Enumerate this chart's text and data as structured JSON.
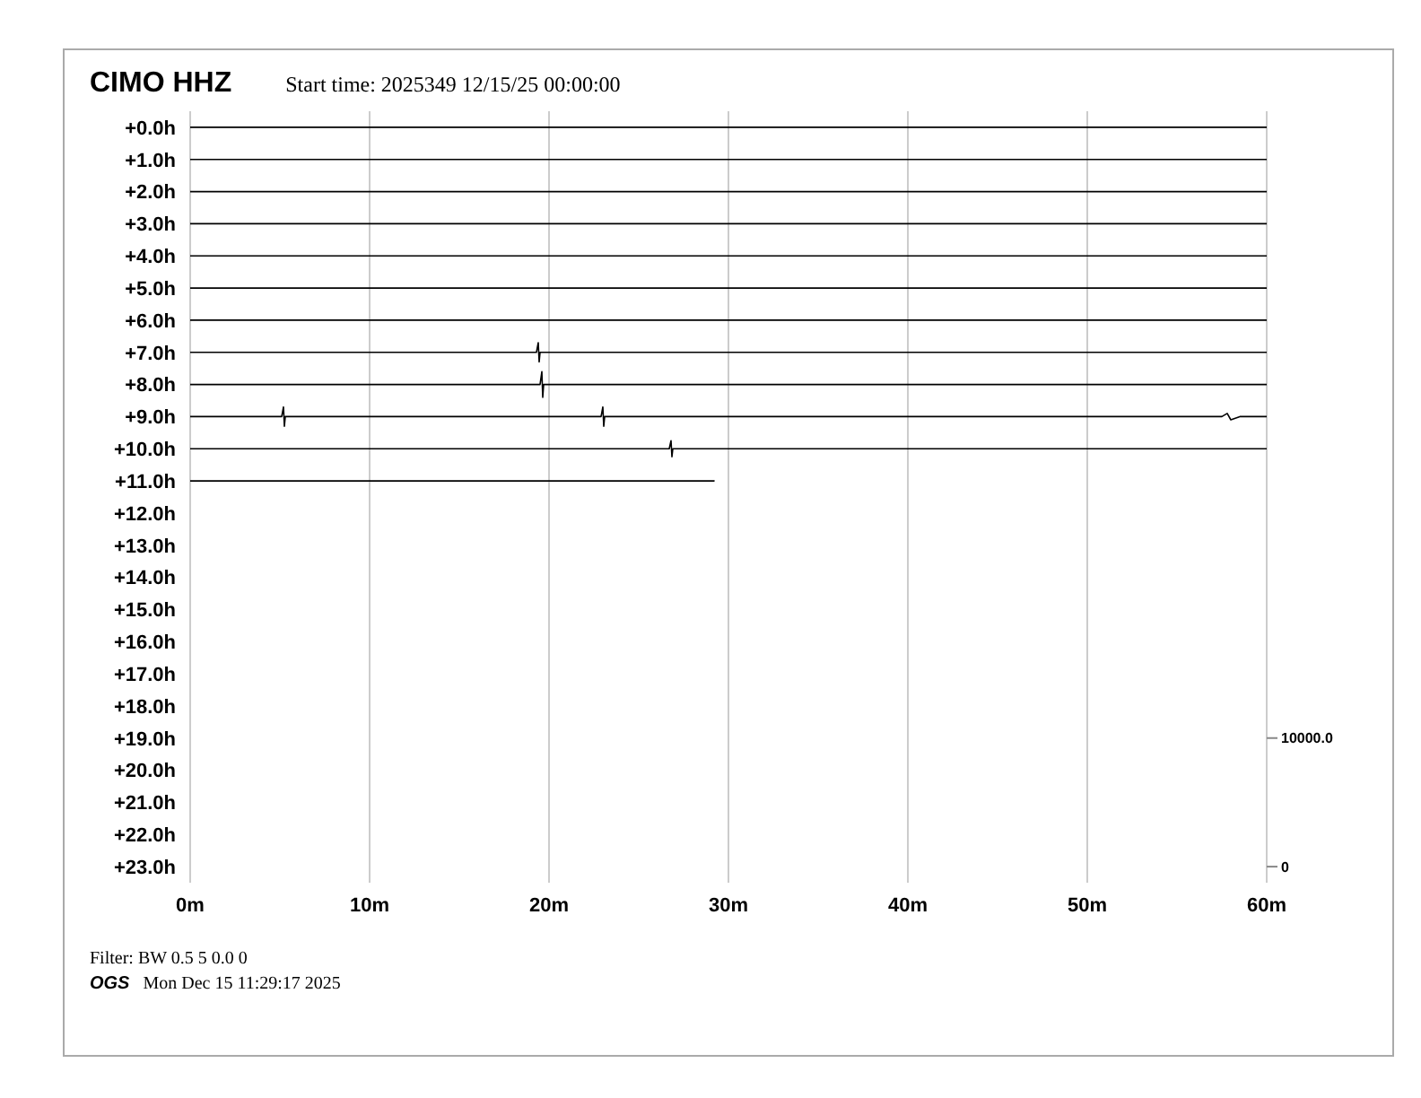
{
  "chart_data": {
    "type": "line",
    "title": "CIMO HHZ",
    "subtitle": "Start time: 2025349 12/15/25 00:00:00",
    "annotations": [
      "Filter: BW 0.5 5 0.0 0",
      "OGS",
      "Mon Dec 15 11:29:17 2025"
    ],
    "xlim": [
      0,
      60
    ],
    "xticks": [
      {
        "value": 0,
        "label": "0m"
      },
      {
        "value": 10,
        "label": "10m"
      },
      {
        "value": 20,
        "label": "20m"
      },
      {
        "value": 30,
        "label": "30m"
      },
      {
        "value": 40,
        "label": "40m"
      },
      {
        "value": 50,
        "label": "50m"
      },
      {
        "value": 60,
        "label": "60m"
      }
    ],
    "ylim": [
      -23.5,
      0.5
    ],
    "yticks": [
      {
        "value": 0,
        "label": "+0.0h"
      },
      {
        "value": -1,
        "label": "+1.0h"
      },
      {
        "value": -2,
        "label": "+2.0h"
      },
      {
        "value": -3,
        "label": "+3.0h"
      },
      {
        "value": -4,
        "label": "+4.0h"
      },
      {
        "value": -5,
        "label": "+5.0h"
      },
      {
        "value": -6,
        "label": "+6.0h"
      },
      {
        "value": -7,
        "label": "+7.0h"
      },
      {
        "value": -8,
        "label": "+8.0h"
      },
      {
        "value": -9,
        "label": "+9.0h"
      },
      {
        "value": -10,
        "label": "+10.0h"
      },
      {
        "value": -11,
        "label": "+11.0h"
      },
      {
        "value": -12,
        "label": "+12.0h"
      },
      {
        "value": -13,
        "label": "+13.0h"
      },
      {
        "value": -14,
        "label": "+14.0h"
      },
      {
        "value": -15,
        "label": "+15.0h"
      },
      {
        "value": -16,
        "label": "+16.0h"
      },
      {
        "value": -17,
        "label": "+17.0h"
      },
      {
        "value": -18,
        "label": "+18.0h"
      },
      {
        "value": -19,
        "label": "+19.0h"
      },
      {
        "value": -20,
        "label": "+20.0h"
      },
      {
        "value": -21,
        "label": "+21.0h"
      },
      {
        "value": -22,
        "label": "+22.0h"
      },
      {
        "value": -23,
        "label": "+23.0h"
      }
    ],
    "y2lim": [
      -1250,
      58750
    ],
    "y2ticks": [
      0,
      {
        "value": 10000,
        "label": "10000.0"
      }
    ],
    "grid": "x",
    "series": [
      {
        "color": "#000000",
        "x": [
          0,
          60
        ],
        "values": [
          0,
          0
        ]
      },
      {
        "color": "#000000",
        "x": [
          0,
          60
        ],
        "values": [
          -1,
          -1
        ]
      },
      {
        "color": "#000000",
        "x": [
          0,
          60
        ],
        "values": [
          -2,
          -2
        ]
      },
      {
        "color": "#000000",
        "x": [
          0,
          60
        ],
        "values": [
          -3,
          -3
        ]
      },
      {
        "color": "#000000",
        "x": [
          0,
          60
        ],
        "values": [
          -4,
          -4
        ]
      },
      {
        "color": "#000000",
        "x": [
          0,
          60
        ],
        "values": [
          -5,
          -5
        ]
      },
      {
        "color": "#000000",
        "x": [
          0,
          60
        ],
        "values": [
          -6,
          -6
        ]
      },
      {
        "color": "#000000",
        "x": [
          0,
          19.3,
          19.4,
          19.45,
          19.5,
          60
        ],
        "values": [
          -7,
          -7,
          -6.7,
          -7.3,
          -7,
          -7
        ]
      },
      {
        "color": "#000000",
        "x": [
          0,
          19.5,
          19.6,
          19.65,
          19.7,
          60
        ],
        "values": [
          -8,
          -8,
          -7.6,
          -8.4,
          -8,
          -8
        ]
      },
      {
        "color": "#000000",
        "x": [
          0,
          5.1,
          5.2,
          5.25,
          5.3,
          22.9,
          23,
          23.05,
          23.1,
          57.5,
          57.8,
          58,
          58.5,
          60
        ],
        "values": [
          -9,
          -9,
          -8.7,
          -9.3,
          -9,
          -9,
          -8.7,
          -9.3,
          -9,
          -9,
          -8.9,
          -9.1,
          -9,
          -9
        ]
      },
      {
        "color": "#000000",
        "x": [
          0,
          26.7,
          26.8,
          26.85,
          26.9,
          60
        ],
        "values": [
          -10,
          -10,
          -9.75,
          -10.25,
          -10,
          -10
        ]
      },
      {
        "color": "#000000",
        "x": [
          0,
          29.2
        ],
        "values": [
          -11,
          -11
        ]
      }
    ]
  }
}
